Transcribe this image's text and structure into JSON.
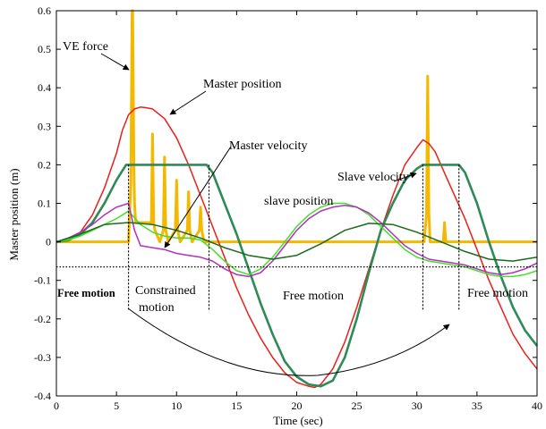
{
  "chart_data": {
    "type": "line",
    "title": "",
    "xlabel": "Time (sec)",
    "ylabel": "Master position (m)",
    "xlim": [
      0,
      40
    ],
    "ylim": [
      -0.4,
      0.6
    ],
    "xticks": [
      "0",
      "5",
      "10",
      "15",
      "20",
      "25",
      "30",
      "35",
      "40"
    ],
    "yticks": [
      "-0.4",
      "-0.3",
      "-0.2",
      "-0.1",
      "0",
      "0.1",
      "0.2",
      "0.3",
      "0.4",
      "0.5",
      "0.6"
    ],
    "grid": false,
    "series": [
      {
        "key": "ve",
        "color": "#f5b800",
        "x": [
          0,
          6.0,
          6.2,
          6.3,
          6.35,
          6.45,
          6.5,
          6.6,
          7.0,
          7.9,
          8.0,
          8.1,
          8.2,
          8.6,
          8.9,
          9.0,
          9.1,
          9.3,
          9.9,
          10.0,
          10.1,
          10.3,
          10.9,
          11.0,
          11.1,
          11.3,
          11.9,
          12.0,
          12.1,
          12.3,
          12.6,
          13.0,
          30.0,
          30.6,
          30.8,
          30.9,
          31.0,
          31.1,
          31.3,
          31.6,
          32.2,
          32.3,
          32.4,
          32.6,
          33.0,
          40.0
        ],
        "y": [
          0,
          0,
          0.15,
          0.6,
          0.6,
          0.2,
          0.1,
          0.05,
          0.05,
          0.05,
          0.28,
          0.05,
          0.03,
          0.0,
          0.03,
          0.22,
          0.03,
          0.0,
          0.03,
          0.16,
          0.03,
          0.0,
          0.03,
          0.13,
          0.03,
          0.0,
          0.03,
          0.09,
          0.03,
          0.0,
          0.0,
          0.0,
          0.0,
          0.0,
          0.07,
          0.43,
          0.07,
          0.0,
          0.0,
          0.0,
          0.0,
          0.05,
          0.0,
          0.0,
          0.0,
          0.0
        ]
      },
      {
        "key": "master_pos",
        "color": "#e8201a",
        "x": [
          0,
          1,
          2,
          3,
          4,
          5,
          5.5,
          6,
          6.5,
          7,
          7.5,
          8,
          9,
          10,
          11,
          12,
          13,
          14,
          15,
          16,
          17,
          18,
          19,
          20,
          21,
          21.5,
          22,
          23,
          24,
          25,
          26,
          27,
          28,
          29,
          30,
          30.5,
          31,
          31.5,
          32,
          33,
          34,
          35,
          36,
          37,
          38,
          39,
          40
        ],
        "y": [
          0.0,
          0.005,
          0.025,
          0.07,
          0.14,
          0.23,
          0.29,
          0.33,
          0.345,
          0.35,
          0.348,
          0.345,
          0.32,
          0.27,
          0.2,
          0.12,
          0.04,
          -0.04,
          -0.12,
          -0.19,
          -0.25,
          -0.3,
          -0.34,
          -0.365,
          -0.375,
          -0.378,
          -0.37,
          -0.33,
          -0.26,
          -0.17,
          -0.07,
          0.03,
          0.12,
          0.2,
          0.245,
          0.265,
          0.255,
          0.235,
          0.2,
          0.13,
          0.06,
          -0.02,
          -0.1,
          -0.17,
          -0.24,
          -0.29,
          -0.33
        ]
      },
      {
        "key": "master_pos_slave",
        "color": "#2e8b57",
        "x": [
          0,
          1,
          2,
          3,
          4,
          5,
          5.8,
          6,
          12.5,
          13,
          14,
          15,
          16,
          17,
          18,
          19,
          20,
          21,
          22,
          23,
          24,
          25,
          26,
          27,
          28,
          29,
          30,
          30.5,
          33.5,
          34,
          35,
          36,
          37,
          38,
          39,
          40
        ],
        "y": [
          0.0,
          0.004,
          0.02,
          0.05,
          0.1,
          0.16,
          0.2,
          0.2,
          0.2,
          0.18,
          0.1,
          0.02,
          -0.07,
          -0.16,
          -0.24,
          -0.31,
          -0.35,
          -0.37,
          -0.375,
          -0.36,
          -0.3,
          -0.2,
          -0.08,
          0.03,
          0.1,
          0.16,
          0.19,
          0.2,
          0.2,
          0.18,
          0.1,
          0.0,
          -0.09,
          -0.17,
          -0.23,
          -0.27
        ]
      },
      {
        "key": "slave_vel",
        "color": "#44e028",
        "x": [
          0,
          1,
          2,
          3,
          4,
          5,
          6,
          7,
          8,
          8.5,
          9,
          10,
          11,
          12,
          13,
          14,
          15,
          16,
          17,
          18,
          19,
          20,
          21,
          22,
          23,
          24,
          25,
          26,
          27,
          28,
          29,
          30,
          31,
          32,
          33,
          34,
          35,
          36,
          37,
          38,
          39,
          40
        ],
        "y": [
          0.0,
          0.005,
          0.015,
          0.03,
          0.045,
          0.06,
          0.08,
          0.045,
          0.025,
          0.02,
          0.015,
          0.01,
          0.01,
          0.005,
          -0.02,
          -0.05,
          -0.075,
          -0.085,
          -0.07,
          -0.04,
          0.0,
          0.04,
          0.07,
          0.09,
          0.1,
          0.1,
          0.09,
          0.07,
          0.04,
          0.01,
          -0.02,
          -0.04,
          -0.05,
          -0.055,
          -0.06,
          -0.065,
          -0.075,
          -0.085,
          -0.09,
          -0.09,
          -0.085,
          -0.075
        ]
      },
      {
        "key": "master_vel",
        "color": "#b030c0",
        "x": [
          0,
          1,
          2,
          3,
          4,
          5,
          6,
          6.5,
          7,
          8,
          9,
          10,
          11,
          12,
          13,
          14,
          15,
          16,
          17,
          18,
          19,
          20,
          21,
          22,
          23,
          24,
          25,
          26,
          27,
          28,
          29,
          30,
          31,
          32,
          33,
          34,
          35,
          36,
          37,
          38,
          39,
          40
        ],
        "y": [
          0.0,
          0.01,
          0.025,
          0.045,
          0.07,
          0.09,
          0.1,
          0.03,
          -0.01,
          -0.015,
          -0.02,
          -0.03,
          -0.035,
          -0.04,
          -0.05,
          -0.07,
          -0.085,
          -0.09,
          -0.08,
          -0.05,
          -0.01,
          0.03,
          0.06,
          0.08,
          0.09,
          0.095,
          0.09,
          0.075,
          0.05,
          0.02,
          -0.01,
          -0.03,
          -0.045,
          -0.05,
          -0.055,
          -0.06,
          -0.07,
          -0.08,
          -0.085,
          -0.08,
          -0.07,
          -0.055
        ]
      },
      {
        "key": "slave_pos",
        "color": "#1a6b1a",
        "x": [
          0,
          2,
          4,
          6,
          8,
          10,
          12,
          14,
          16,
          18,
          20,
          22,
          24,
          26,
          28,
          30,
          32,
          34,
          36,
          38,
          40
        ],
        "y": [
          0.0,
          0.02,
          0.045,
          0.05,
          0.045,
          0.03,
          0.01,
          -0.015,
          -0.035,
          -0.045,
          -0.035,
          -0.005,
          0.03,
          0.048,
          0.045,
          0.025,
          0.0,
          -0.025,
          -0.045,
          -0.05,
          -0.04
        ]
      }
    ],
    "annotations": {
      "ve_force": "VE force",
      "master_position": "Master position",
      "master_velocity": "Master velocity",
      "slave_velocity": "Slave velocity",
      "slave_position": "slave position",
      "free_motion_1": "Free motion",
      "constrained_line1": "Constrained",
      "constrained_line2": "motion",
      "free_motion_2": "Free motion",
      "free_motion_3": "Free motion"
    },
    "dashed_time_markers": [
      6,
      12.7,
      30.5,
      33.5
    ],
    "horizontal_reference_y": -0.065
  }
}
